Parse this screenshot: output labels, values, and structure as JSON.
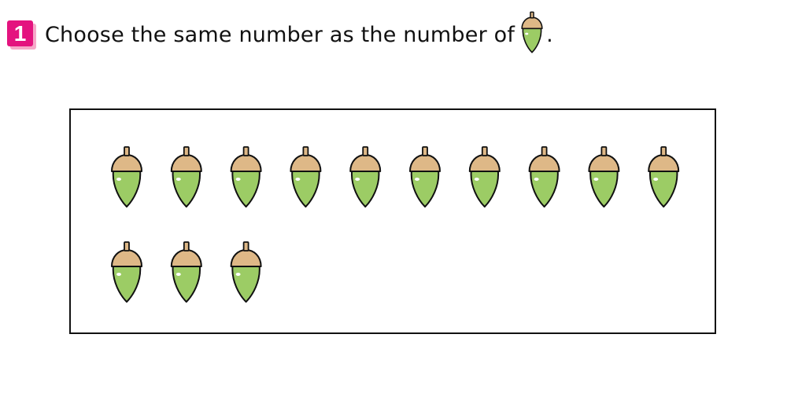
{
  "problem": {
    "number": "1",
    "question_text": "Choose the same number as the number of",
    "end_punct": ".",
    "counted_object_icon": "acorn-icon"
  },
  "colors": {
    "badge": "#e4137f",
    "badge_shadow": "#f6a8c8",
    "acorn_body": "#9ccc65",
    "acorn_cap": "#deb887",
    "outline": "#111111"
  },
  "acorn_box": {
    "count": 13
  }
}
